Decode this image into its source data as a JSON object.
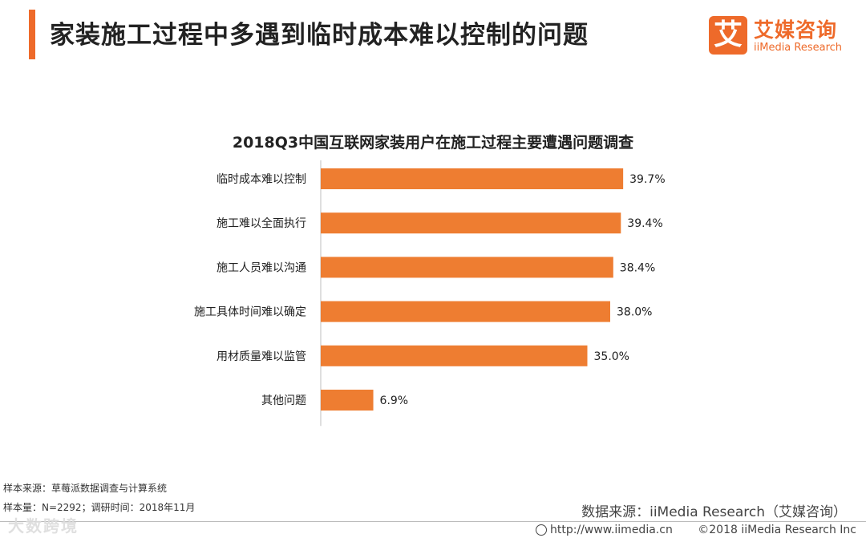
{
  "header": {
    "title": "家装施工过程中多遇到临时成本难以控制的问题",
    "logo_mark": "艾",
    "logo_cn": "艾媒咨询",
    "logo_en": "iiMedia Research"
  },
  "colors": {
    "accent": "#ee6a2a",
    "bar": "#ee7d31"
  },
  "chart_data": {
    "type": "bar",
    "orientation": "horizontal",
    "title": "2018Q3中国互联网家装用户在施工过程主要遭遇问题调查",
    "categories": [
      "临时成本难以控制",
      "施工难以全面执行",
      "施工人员难以沟通",
      "施工具体时间难以确定",
      "用材质量难以监管",
      "其他问题"
    ],
    "values": [
      39.7,
      39.4,
      38.4,
      38.0,
      35.0,
      6.9
    ],
    "value_labels": [
      "39.7%",
      "39.4%",
      "38.4%",
      "38.0%",
      "35.0%",
      "6.9%"
    ],
    "unit": "%",
    "xlim": [
      0,
      40
    ],
    "grid": false,
    "legend": "none"
  },
  "footer": {
    "source": "样本来源：草莓派数据调查与计算系统",
    "sample": "样本量：N=2292；调研时间：2018年11月",
    "data_source": "数据来源：iiMedia Research（艾媒咨询）",
    "watermark": "大数跨境",
    "url": "http://www.iimedia.cn",
    "copyright": "©2018  iiMedia Research  Inc"
  }
}
